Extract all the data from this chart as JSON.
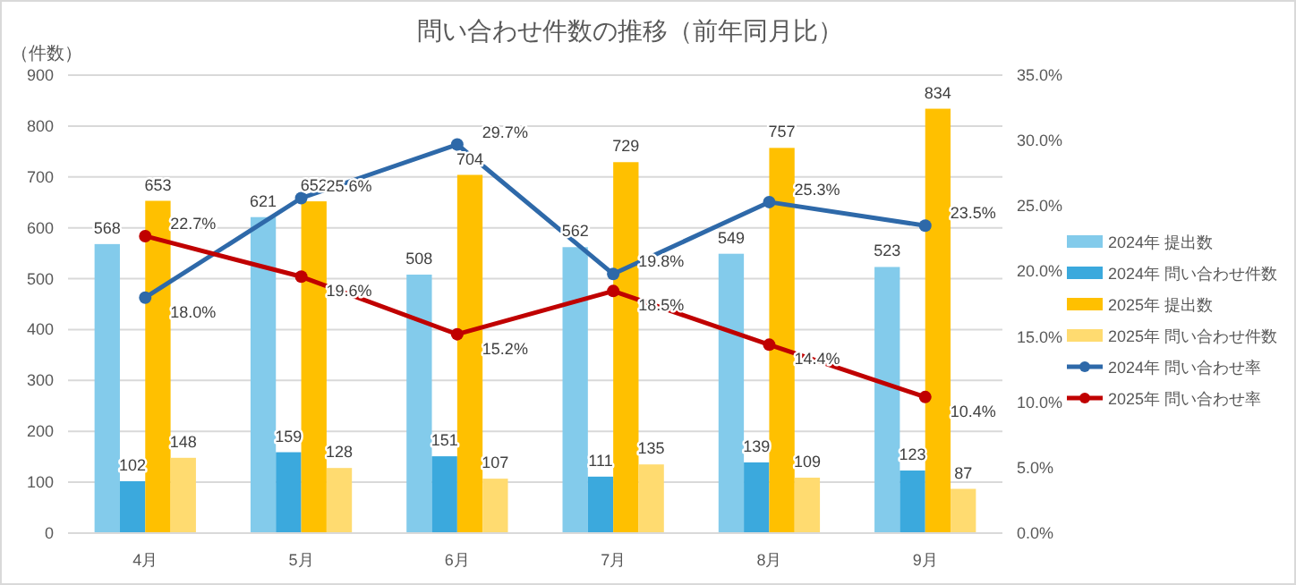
{
  "chart_data": {
    "type": "bar",
    "title": "問い合わせ件数の推移（前年同月比）",
    "ylabel": "（件数）",
    "categories": [
      "4月",
      "5月",
      "6月",
      "7月",
      "8月",
      "9月"
    ],
    "series": [
      {
        "name": "2024年 提出数",
        "color": "#83cbeb",
        "values": [
          568,
          621,
          508,
          562,
          549,
          523
        ]
      },
      {
        "name": "2024年 問い合わせ件数",
        "color": "#3ba9dd",
        "values": [
          102,
          159,
          151,
          111,
          139,
          123
        ]
      },
      {
        "name": "2025年 提出数",
        "color": "#ffc000",
        "values": [
          653,
          652,
          704,
          729,
          757,
          834
        ]
      },
      {
        "name": "2025年 問い合わせ件数",
        "color": "#ffdb70",
        "values": [
          148,
          128,
          107,
          135,
          109,
          87
        ]
      },
      {
        "name": "2024年 問い合わせ率",
        "type": "line",
        "axis": "y2",
        "color": "#2e69a9",
        "values": [
          18.0,
          25.6,
          29.7,
          19.8,
          25.3,
          23.5
        ],
        "value_labels": [
          "18.0%",
          "25.6%",
          "29.7%",
          "19.8%",
          "25.3%",
          "23.5%"
        ]
      },
      {
        "name": "2025年 問い合わせ率",
        "type": "line",
        "axis": "y2",
        "color": "#c00000",
        "values": [
          22.7,
          19.6,
          15.2,
          18.5,
          14.4,
          10.4
        ],
        "value_labels": [
          "22.7%",
          "19.6%",
          "15.2%",
          "18.5%",
          "14.4%",
          "10.4%"
        ]
      }
    ],
    "data_labels": true,
    "ylim": [
      0,
      900
    ],
    "yticks": [
      0,
      100,
      200,
      300,
      400,
      500,
      600,
      700,
      800,
      900
    ],
    "y2lim": [
      0,
      35
    ],
    "y2ticks": [
      {
        "value": 0,
        "label": "0.0%"
      },
      {
        "value": 5,
        "label": "5.0%"
      },
      {
        "value": 10,
        "label": "10.0%"
      },
      {
        "value": 15,
        "label": "15.0%"
      },
      {
        "value": 20,
        "label": "20.0%"
      },
      {
        "value": 25,
        "label": "25.0%"
      },
      {
        "value": 30,
        "label": "30.0%"
      },
      {
        "value": 35,
        "label": "35.0%"
      }
    ],
    "grid": "y",
    "legend": "right",
    "marker": "circle",
    "line_style": "solid"
  }
}
